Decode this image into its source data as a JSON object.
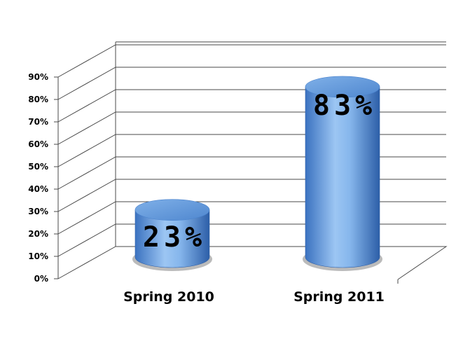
{
  "chart_data": {
    "type": "bar",
    "title": "",
    "xlabel": "",
    "ylabel": "",
    "categories": [
      "Spring 2010",
      "Spring 2011"
    ],
    "values": [
      23,
      83
    ],
    "data_labels": [
      "23%",
      "83%"
    ],
    "ylim": [
      0,
      90
    ],
    "yticks": [
      0,
      10,
      20,
      30,
      40,
      50,
      60,
      70,
      80,
      90
    ],
    "ytick_labels": [
      "0%",
      "10%",
      "20%",
      "30%",
      "40%",
      "50%",
      "60%",
      "70%",
      "80%",
      "90%"
    ],
    "grid": true,
    "legend": "none",
    "style": "3d-cylinder",
    "colors": {
      "bar": "#5c94d6",
      "bar_light": "#b3d4f7",
      "bar_dark": "#2f63ad",
      "grid": "#4a4a4a"
    }
  }
}
